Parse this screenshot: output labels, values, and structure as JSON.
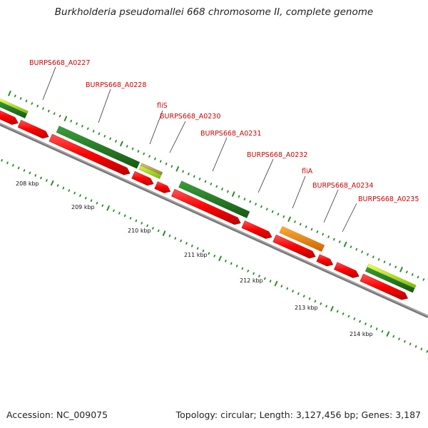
{
  "title": "Burkholderia pseudomallei 668 chromosome II, complete genome",
  "accession": "Accession: NC_009075",
  "summary": "Topology: circular; Length: 3,127,456 bp; Genes: 3,187",
  "colors": {
    "cds": "#ff0000",
    "feature_dark_green": "#1f7a1f",
    "feature_light_green": "#99dd00",
    "feature_orange": "#ff8c00",
    "label_red": "#d40000",
    "backbone": "#888888",
    "tick_green": "#2a8a2a"
  },
  "kbp_labels": [
    "208 kbp",
    "209 kbp",
    "210 kbp",
    "211 kbp",
    "212 kbp",
    "213 kbp",
    "214 kbp"
  ],
  "gene_labels": [
    "BURPS668_A0227",
    "BURPS668_A0228",
    "fliS",
    "BURPS668_A0230",
    "BURPS668_A0231",
    "BURPS668_A0232",
    "fliA",
    "BURPS668_A0234",
    "BURPS668_A0235"
  ]
}
